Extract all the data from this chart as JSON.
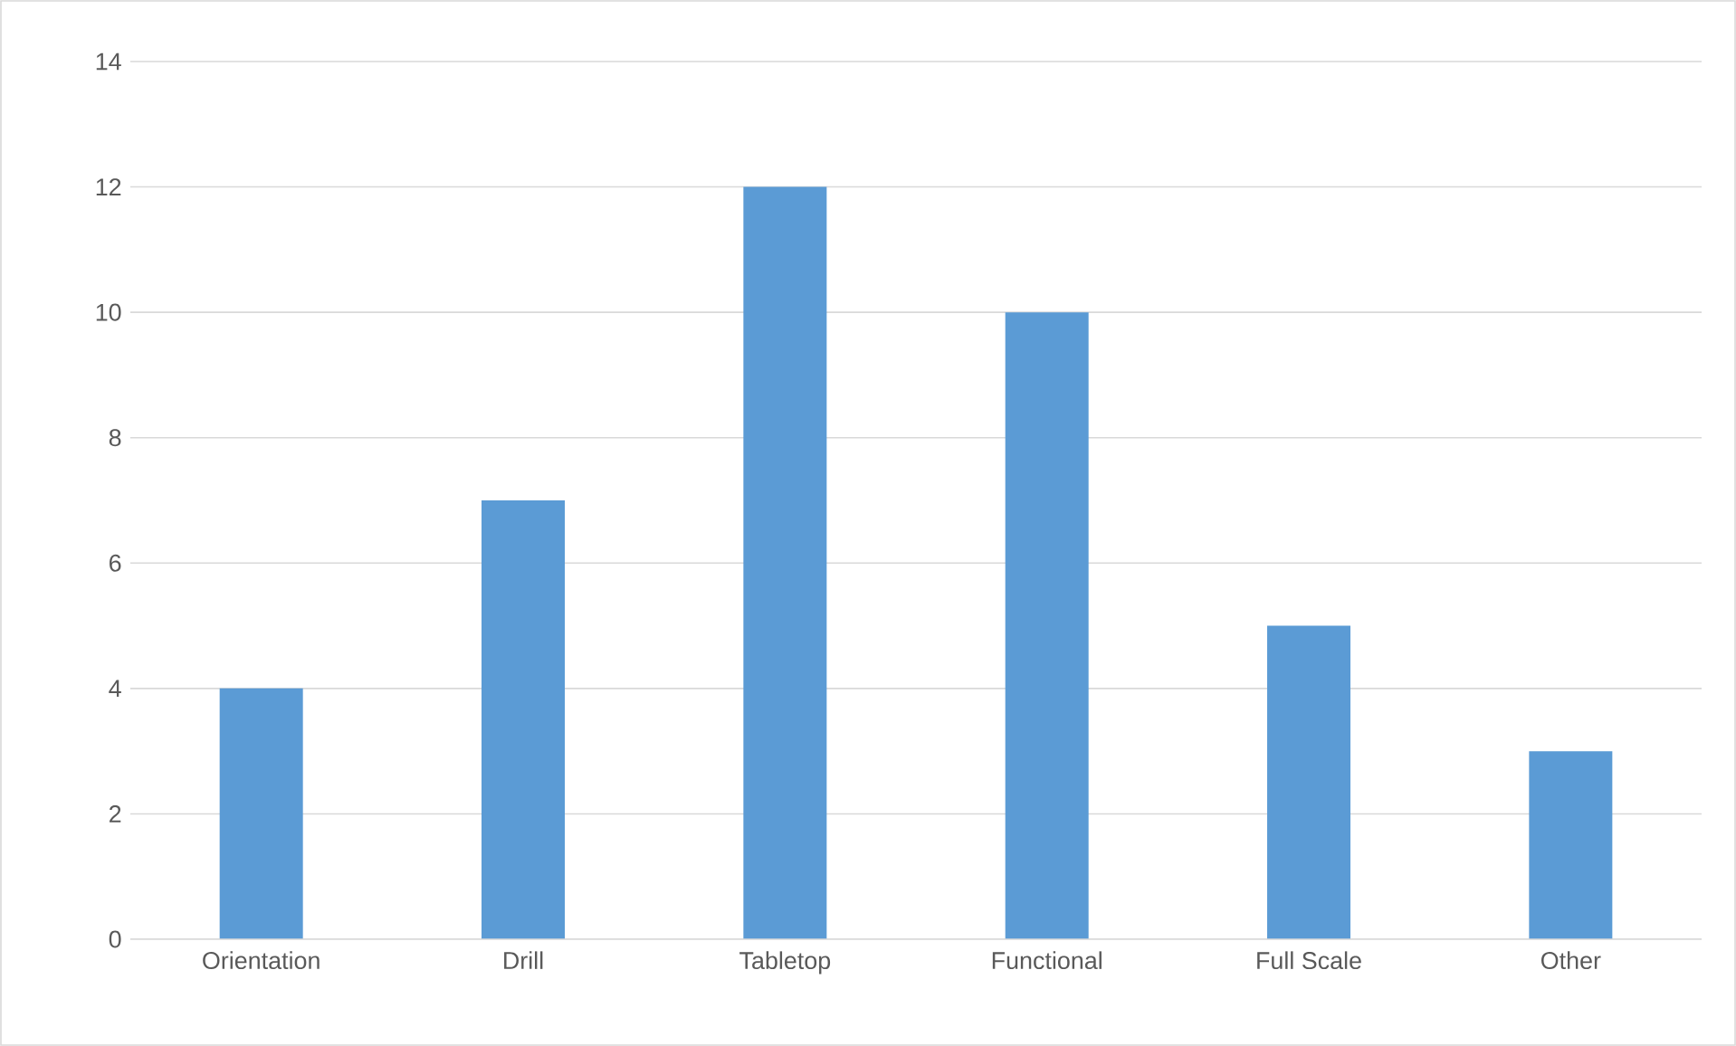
{
  "chart_data": {
    "type": "bar",
    "categories": [
      "Orientation",
      "Drill",
      "Tabletop",
      "Functional",
      "Full Scale",
      "Other"
    ],
    "values": [
      4,
      7,
      12,
      10,
      5,
      3
    ],
    "color": "#5b9bd5",
    "ylim": [
      0,
      14
    ],
    "yticks": [
      0,
      2,
      4,
      6,
      8,
      10,
      12,
      14
    ],
    "grid": "y"
  }
}
